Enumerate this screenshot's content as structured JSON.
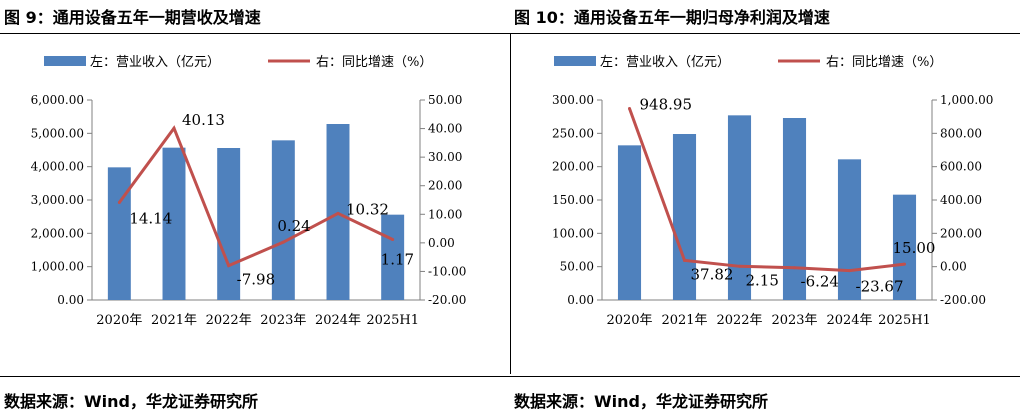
{
  "figures": [
    {
      "title": "图 9：通用设备五年一期营收及增速",
      "source": "数据来源：Wind，华龙证券研究所",
      "chart_data": {
        "type": "bar+line",
        "categories": [
          "2020年",
          "2021年",
          "2022年",
          "2023年",
          "2024年",
          "2025H1"
        ],
        "series": [
          {
            "name": "左：营业收入（亿元）",
            "type": "bar",
            "axis": "left",
            "color": "#4f81bd",
            "values": [
              3980,
              4570,
              4560,
              4790,
              5280,
              2560
            ]
          },
          {
            "name": "右：同比增速（%）",
            "type": "line",
            "axis": "right",
            "color": "#c0504d",
            "values": [
              14.14,
              40.13,
              -7.98,
              0.24,
              10.32,
              1.17
            ],
            "labels": [
              "14.14",
              "40.13",
              "-7.98",
              "0.24",
              "10.32",
              "1.17"
            ]
          }
        ],
        "left_axis": {
          "min": 0,
          "max": 6000,
          "ticks": [
            "0.00",
            "1,000.00",
            "2,000.00",
            "3,000.00",
            "4,000.00",
            "5,000.00",
            "6,000.00"
          ]
        },
        "right_axis": {
          "min": -20,
          "max": 50,
          "ticks": [
            "-20.00",
            "-10.00",
            "0.00",
            "10.00",
            "20.00",
            "30.00",
            "40.00",
            "50.00"
          ]
        },
        "legend_position": "top",
        "grid": false
      }
    },
    {
      "title": "图 10：通用设备五年一期归母净利润及增速",
      "source": "数据来源：Wind，华龙证券研究所",
      "chart_data": {
        "type": "bar+line",
        "categories": [
          "2020年",
          "2021年",
          "2022年",
          "2023年",
          "2024年",
          "2025H1"
        ],
        "series": [
          {
            "name": "左：营业收入（亿元）",
            "type": "bar",
            "axis": "left",
            "color": "#4f81bd",
            "values": [
              232,
              249,
              277,
              273,
              211,
              158
            ]
          },
          {
            "name": "右：同比增速（%）",
            "type": "line",
            "axis": "right",
            "color": "#c0504d",
            "values": [
              948.95,
              37.82,
              2.15,
              -6.24,
              -23.67,
              15.0
            ],
            "labels": [
              "948.95",
              "37.82",
              "2.15",
              "-6.24",
              "-23.67",
              "15.00"
            ]
          }
        ],
        "left_axis": {
          "min": 0,
          "max": 300,
          "ticks": [
            "0.00",
            "50.00",
            "100.00",
            "150.00",
            "200.00",
            "250.00",
            "300.00"
          ]
        },
        "right_axis": {
          "min": -200,
          "max": 1000,
          "ticks": [
            "-200.00",
            "0.00",
            "200.00",
            "400.00",
            "600.00",
            "800.00",
            "1,000.00"
          ]
        },
        "legend_position": "top",
        "grid": false
      }
    }
  ]
}
